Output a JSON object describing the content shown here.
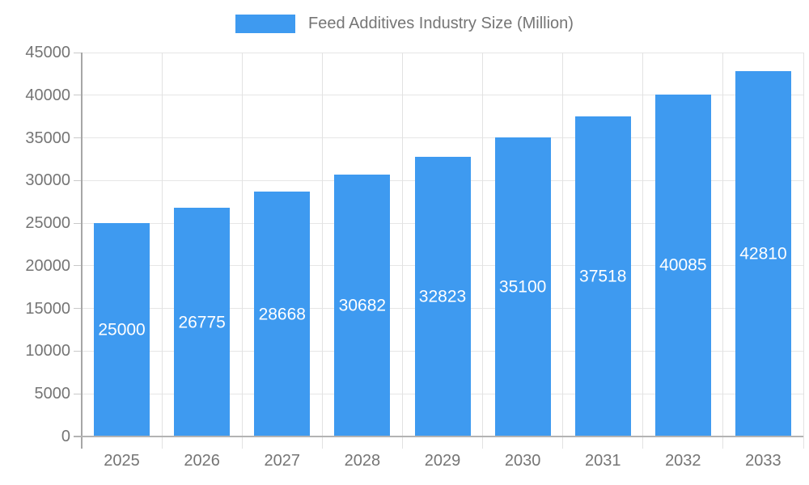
{
  "legend": {
    "label": "Feed Additives Industry Size (Million)"
  },
  "colors": {
    "bar": "#3E9AF0",
    "bar_label_text": "#FFFFFF",
    "axis_text": "#757575",
    "gridline": "#E6E6E6",
    "axis_line": "#A6A6A6",
    "baseline": "#B3B3B3",
    "background": "#FFFFFF"
  },
  "chart_data": {
    "type": "bar",
    "title": "Feed Additives Industry Size (Million)",
    "categories": [
      "2025",
      "2026",
      "2027",
      "2028",
      "2029",
      "2030",
      "2031",
      "2032",
      "2033"
    ],
    "values": [
      25000,
      26775,
      28668,
      30682,
      32823,
      35100,
      37518,
      40085,
      42810
    ],
    "xlabel": "",
    "ylabel": "",
    "ylim": [
      0,
      45000
    ],
    "yticks": [
      0,
      5000,
      10000,
      15000,
      20000,
      25000,
      30000,
      35000,
      40000,
      45000
    ],
    "grid": true,
    "legend_position": "top",
    "bar_labels": "inside-center-white"
  }
}
